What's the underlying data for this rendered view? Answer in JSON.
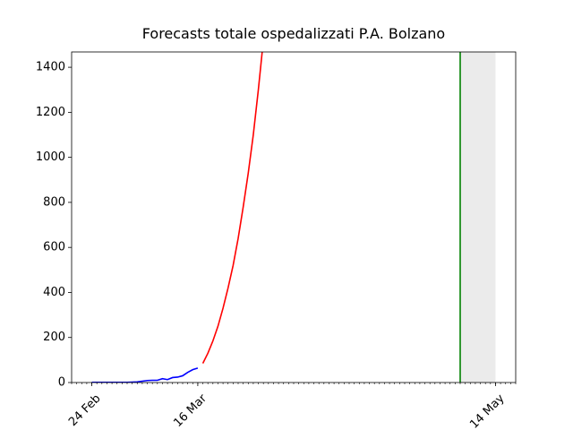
{
  "chart_data": {
    "type": "line",
    "title": "Forecasts totale ospedalizzati P.A. Bolzano",
    "series": [
      {
        "color": "#0000ff",
        "x": [
          "24 Feb",
          "25 Feb",
          "26 Feb",
          "27 Feb",
          "28 Feb",
          "29 Feb",
          "1 Mar",
          "2 Mar",
          "3 Mar",
          "4 Mar",
          "5 Mar",
          "6 Mar",
          "7 Mar",
          "8 Mar",
          "9 Mar",
          "10 Mar",
          "11 Mar",
          "12 Mar",
          "13 Mar",
          "14 Mar",
          "15 Mar",
          "16 Mar"
        ],
        "values": [
          1,
          1,
          1,
          1,
          1,
          1,
          1,
          1,
          2,
          3,
          6,
          9,
          10,
          10,
          17,
          13,
          22,
          24,
          30,
          45,
          57,
          64
        ]
      },
      {
        "color": "#ff0000",
        "x": [
          "17 Mar",
          "18 Mar",
          "19 Mar",
          "20 Mar",
          "21 Mar",
          "22 Mar",
          "23 Mar",
          "24 Mar",
          "25 Mar",
          "26 Mar",
          "27 Mar",
          "28 Mar",
          "29 Mar"
        ],
        "values": [
          85,
          130,
          185,
          250,
          330,
          420,
          520,
          640,
          780,
          930,
          1100,
          1300,
          1520
        ]
      }
    ],
    "xlim": [
      "20 Feb",
      "18 May"
    ],
    "xticks": [
      "24 Feb",
      "16 Mar",
      "14 May"
    ],
    "ylim": [
      0,
      1468
    ],
    "yticks": [
      0,
      200,
      400,
      600,
      800,
      1000,
      1200,
      1400
    ],
    "vline": {
      "x": "7 May",
      "color": "#008000"
    },
    "span": {
      "x": [
        "7 May",
        "14 May"
      ],
      "color": "#ebebeb"
    }
  }
}
